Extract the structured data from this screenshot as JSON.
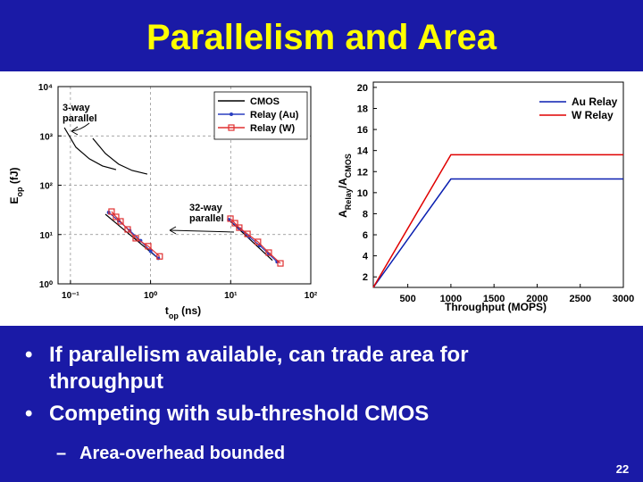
{
  "title": "Parallelism and Area",
  "chart_data": [
    {
      "type": "line",
      "x_label": [
        {
          "text": "t"
        },
        {
          "text": "op",
          "sub": true
        },
        {
          "text": " (ns)"
        }
      ],
      "y_label": [
        {
          "text": "E"
        },
        {
          "text": "op",
          "sub": true
        },
        {
          "text": " (fJ)"
        }
      ],
      "xscale": "log",
      "yscale": "log",
      "xlim": [
        0.07,
        100
      ],
      "ylim": [
        1,
        10000
      ],
      "xticks": [
        {
          "value": 0.1,
          "label": "10⁻¹"
        },
        {
          "value": 1,
          "label": "10⁰"
        },
        {
          "value": 10,
          "label": "10¹"
        },
        {
          "value": 100,
          "label": "10²"
        }
      ],
      "yticks": [
        {
          "value": 1,
          "label": "10⁰"
        },
        {
          "value": 10,
          "label": "10¹"
        },
        {
          "value": 100,
          "label": "10²"
        },
        {
          "value": 1000,
          "label": "10³"
        },
        {
          "value": 10000,
          "label": "10⁴"
        }
      ],
      "grid": true,
      "legend": "upper right",
      "annotations": [
        {
          "text": [
            "3-way",
            "parallel"
          ]
        },
        {
          "text": [
            "32-way",
            "parallel"
          ]
        }
      ],
      "series": [
        {
          "name": "CMOS",
          "color": "#000000",
          "marker": "none",
          "x": [
            0.084,
            0.117,
            0.172,
            0.251,
            0.371,
            null,
            0.19,
            0.273,
            0.401,
            0.589,
            0.91,
            null,
            0.273,
            1.27,
            null,
            9.18,
            33.2
          ],
          "values": [
            1470,
            588,
            343,
            246,
            207,
            null,
            891,
            439,
            266,
            199,
            168,
            null,
            25.8,
            3.2,
            null,
            20.9,
            3.0
          ]
        },
        {
          "name": "Relay (Au)",
          "color": "#2a3fc0",
          "marker": "dot",
          "x": [
            0.3,
            0.4,
            0.55,
            0.75,
            1.0,
            1.25,
            null,
            9.5,
            13,
            17,
            23,
            30,
            38
          ],
          "values": [
            28,
            19,
            12,
            7.5,
            4.6,
            3.3,
            null,
            20,
            13,
            9,
            6,
            4,
            2.8
          ]
        },
        {
          "name": "Relay (W)",
          "color": "#e03030",
          "marker": "square",
          "x": [
            0.326,
            0.371,
            0.422,
            0.518,
            0.653,
            0.935,
            1.3,
            null,
            9.93,
            11.3,
            12.8,
            16.2,
            21.9,
            29.9,
            41.8
          ],
          "values": [
            29.2,
            22.8,
            18.5,
            12.7,
            8.4,
            5.8,
            3.6,
            null,
            21.0,
            17.0,
            13.8,
            10.3,
            7.1,
            4.3,
            2.6
          ]
        }
      ]
    },
    {
      "type": "line",
      "x_label": [
        {
          "text": "Throughput (MOPS)"
        }
      ],
      "y_label": [
        {
          "text": "A"
        },
        {
          "text": "Relay",
          "sub": true
        },
        {
          "text": "/A"
        },
        {
          "text": "CMOS",
          "sub": true
        }
      ],
      "xlim": [
        100,
        3000
      ],
      "ylim": [
        1,
        20.5
      ],
      "xticks": [
        500,
        1000,
        1500,
        2000,
        2500,
        3000
      ],
      "yticks": [
        2,
        4,
        6,
        8,
        10,
        12,
        14,
        16,
        18,
        20
      ],
      "grid": false,
      "legend": "upper right",
      "series": [
        {
          "name": "Au Relay",
          "color": "#0a1fb0",
          "marker": "none",
          "x": [
            100,
            1000,
            3000
          ],
          "values": [
            1,
            11.3,
            11.3
          ]
        },
        {
          "name": "W Relay",
          "color": "#e00000",
          "marker": "none",
          "x": [
            100,
            1000,
            3000
          ],
          "values": [
            1,
            13.6,
            13.6
          ]
        }
      ]
    }
  ],
  "bullets": [
    {
      "text": "If parallelism available, can trade area for throughput"
    },
    {
      "text": "Competing with sub-threshold CMOS",
      "sub_bullets": [
        "Area-overhead bounded"
      ]
    }
  ],
  "page_number": "22"
}
